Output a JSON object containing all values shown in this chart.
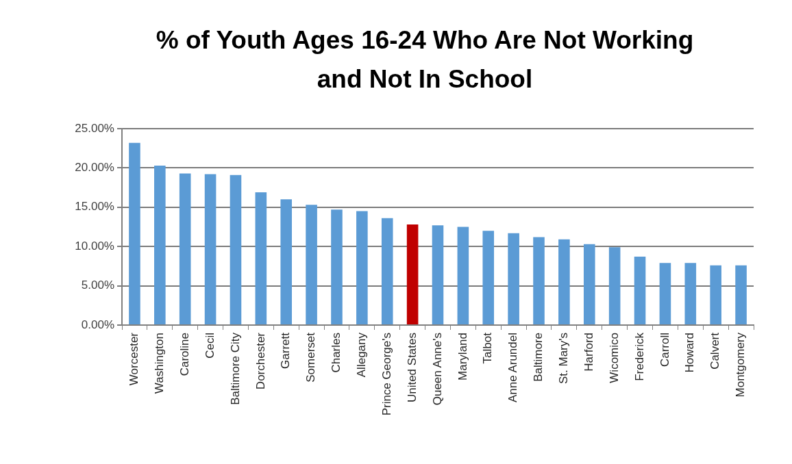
{
  "chart_data": {
    "type": "bar",
    "title": "% of Youth Ages 16-24 Who Are Not Working and Not In School",
    "categories": [
      "Worcester",
      "Washington",
      "Caroline",
      "Cecil",
      "Baltimore City",
      "Dorchester",
      "Garrett",
      "Somerset",
      "Charles",
      "Allegany",
      "Prince George's",
      "United States",
      "Queen Anne's",
      "Maryland",
      "Talbot",
      "Anne Arundel",
      "Baltimore",
      "St. Mary's",
      "Harford",
      "Wicomico",
      "Frederick",
      "Carroll",
      "Howard",
      "Calvert",
      "Montgomery"
    ],
    "values": [
      23.2,
      20.3,
      19.3,
      19.2,
      19.1,
      16.9,
      16.0,
      15.3,
      14.7,
      14.5,
      13.6,
      12.8,
      12.7,
      12.5,
      12.0,
      11.7,
      11.2,
      10.9,
      10.3,
      9.9,
      8.7,
      7.9,
      7.9,
      7.6,
      7.6
    ],
    "colors": [
      "#5b9bd5",
      "#5b9bd5",
      "#5b9bd5",
      "#5b9bd5",
      "#5b9bd5",
      "#5b9bd5",
      "#5b9bd5",
      "#5b9bd5",
      "#5b9bd5",
      "#5b9bd5",
      "#5b9bd5",
      "#c00000",
      "#5b9bd5",
      "#5b9bd5",
      "#5b9bd5",
      "#5b9bd5",
      "#5b9bd5",
      "#5b9bd5",
      "#5b9bd5",
      "#5b9bd5",
      "#5b9bd5",
      "#5b9bd5",
      "#5b9bd5",
      "#5b9bd5",
      "#5b9bd5"
    ],
    "ylim": [
      0,
      25
    ],
    "yticks": [
      {
        "value": 0,
        "label": "0.00%"
      },
      {
        "value": 5,
        "label": "5.00%"
      },
      {
        "value": 10,
        "label": "10.00%"
      },
      {
        "value": 15,
        "label": "15.00%"
      },
      {
        "value": 20,
        "label": "20.00%"
      },
      {
        "value": 25,
        "label": "25.00%"
      }
    ],
    "grid": "y"
  }
}
